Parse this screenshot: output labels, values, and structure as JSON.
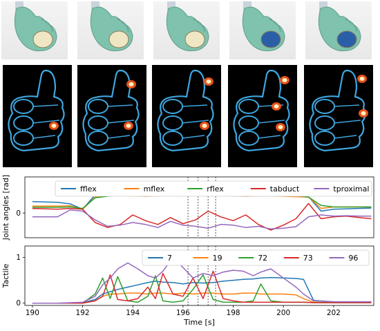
{
  "colors": {
    "blue": "#1f77b4",
    "orange": "#ff7f0e",
    "green": "#2ca02c",
    "red": "#d62728",
    "purple": "#9467bd",
    "glove": "#7fc2ae",
    "thermal_glow": "#3fa7e0",
    "thermal_hot": "#ff5a1e"
  },
  "photos": {
    "count": 5,
    "icon": "gloved-hand-holding-object"
  },
  "thermal_images": {
    "count": 5,
    "icon": "thermal-hand-render"
  },
  "chart_data": [
    {
      "type": "line",
      "ylabel": "Joint angles [rad]",
      "xlim": [
        189.7,
        203.6
      ],
      "ylim": [
        -0.65,
        0.95
      ],
      "yticks": [
        0
      ],
      "legend": "top",
      "legend_entries": [
        "fflex",
        "mflex",
        "rflex",
        "tabduct",
        "tproximal"
      ],
      "x": [
        190,
        191,
        191.5,
        192,
        192.5,
        193,
        193.5,
        194,
        194.5,
        195,
        195.5,
        196,
        196.5,
        197,
        197.5,
        198,
        198.5,
        199,
        199.5,
        200,
        200.5,
        201,
        201.5,
        202,
        202.5,
        203,
        203.5
      ],
      "series": [
        {
          "name": "fflex",
          "color": "blue",
          "values": [
            0.3,
            0.28,
            0.24,
            0.1,
            0.48,
            0.52,
            0.5,
            0.52,
            0.48,
            0.5,
            0.52,
            0.48,
            0.5,
            0.46,
            0.5,
            0.47,
            0.5,
            0.48,
            0.49,
            0.47,
            0.45,
            0.43,
            0.05,
            0.1,
            0.11,
            0.12,
            0.13
          ]
        },
        {
          "name": "mflex",
          "color": "orange",
          "values": [
            0.18,
            0.18,
            0.19,
            0.1,
            0.42,
            0.45,
            0.46,
            0.45,
            0.44,
            0.45,
            0.46,
            0.45,
            0.46,
            0.45,
            0.46,
            0.45,
            0.44,
            0.45,
            0.45,
            0.44,
            0.43,
            0.42,
            0.12,
            0.16,
            0.16,
            0.16,
            0.16
          ]
        },
        {
          "name": "rflex",
          "color": "green",
          "values": [
            0.15,
            0.15,
            0.16,
            0.12,
            0.4,
            0.44,
            0.48,
            0.46,
            0.45,
            0.48,
            0.5,
            0.47,
            0.49,
            0.47,
            0.49,
            0.48,
            0.5,
            0.47,
            0.48,
            0.46,
            0.46,
            0.42,
            0.2,
            0.16,
            0.16,
            0.16,
            0.16
          ]
        },
        {
          "name": "tabduct",
          "color": "red",
          "values": [
            0.12,
            0.1,
            0.12,
            0.1,
            -0.25,
            -0.38,
            -0.3,
            -0.05,
            -0.2,
            -0.3,
            -0.12,
            -0.28,
            -0.18,
            0.05,
            -0.1,
            -0.2,
            -0.05,
            -0.3,
            -0.45,
            -0.32,
            -0.15,
            0.25,
            -0.15,
            -0.1,
            -0.08,
            -0.12,
            -0.15
          ]
        },
        {
          "name": "tproximal",
          "color": "purple",
          "values": [
            -0.1,
            -0.1,
            0.08,
            0.05,
            -0.18,
            -0.35,
            -0.32,
            -0.25,
            -0.3,
            -0.38,
            -0.22,
            -0.32,
            -0.35,
            -0.4,
            -0.3,
            -0.32,
            -0.38,
            -0.35,
            -0.42,
            -0.4,
            -0.36,
            -0.1,
            -0.05,
            -0.08,
            -0.07,
            -0.08,
            -0.08
          ]
        }
      ]
    },
    {
      "type": "line",
      "ylabel": "Tactile",
      "xlabel": "Time [s]",
      "xlim": [
        189.7,
        203.6
      ],
      "ylim": [
        -0.05,
        1.25
      ],
      "yticks": [
        0,
        1
      ],
      "xticks": [
        190,
        192,
        194,
        196,
        198,
        200,
        202
      ],
      "legend": "top",
      "legend_entries": [
        "7",
        "19",
        "72",
        "73",
        "96"
      ],
      "x": [
        190,
        191,
        192,
        192.5,
        192.8,
        193.1,
        193.4,
        193.8,
        194.2,
        194.6,
        194.9,
        195.2,
        195.6,
        196.0,
        196.4,
        196.8,
        197.2,
        197.6,
        198.0,
        198.4,
        198.8,
        199.1,
        199.5,
        200.0,
        200.5,
        200.8,
        201.2,
        202,
        203,
        203.5
      ],
      "series": [
        {
          "name": "7",
          "color": "blue",
          "values": [
            0,
            0,
            0.01,
            0.08,
            0.2,
            0.25,
            0.3,
            0.35,
            0.4,
            0.45,
            0.48,
            0.46,
            0.45,
            0.42,
            0.45,
            0.44,
            0.45,
            0.48,
            0.5,
            0.52,
            0.53,
            0.55,
            0.56,
            0.55,
            0.54,
            0.52,
            0.06,
            0.03,
            0.03,
            0.03
          ]
        },
        {
          "name": "19",
          "color": "orange",
          "values": [
            0,
            0,
            0,
            0.05,
            0.15,
            0.2,
            0.2,
            0.22,
            0.22,
            0.2,
            0.22,
            0.22,
            0.2,
            0.22,
            0.2,
            0.22,
            0.22,
            0.2,
            0.2,
            0.22,
            0.22,
            0.2,
            0.2,
            0.2,
            0.18,
            0.1,
            0.02,
            0.01,
            0.01,
            0.01
          ]
        },
        {
          "name": "72",
          "color": "green",
          "values": [
            0,
            0,
            0,
            0.2,
            0.55,
            0.1,
            0.58,
            0.05,
            0.02,
            0.15,
            0.6,
            0.05,
            0.02,
            0.05,
            0.3,
            0.62,
            0.08,
            0.02,
            0.02,
            0.02,
            0.05,
            0.42,
            0.05,
            0.02,
            0.02,
            0.02,
            0.01,
            0.01,
            0.01,
            0.01
          ]
        },
        {
          "name": "73",
          "color": "red",
          "values": [
            0,
            0,
            0,
            0.05,
            0.15,
            0.62,
            0.08,
            0.05,
            0.1,
            0.35,
            0.1,
            0.65,
            0.2,
            0.15,
            0.55,
            0.1,
            0.7,
            0.1,
            0.05,
            0.02,
            0.02,
            0.02,
            0.02,
            0.02,
            0.02,
            0.02,
            0.01,
            0.01,
            0.01,
            0.01
          ]
        },
        {
          "name": "96",
          "color": "purple",
          "values": [
            0,
            0,
            0.02,
            0.15,
            0.4,
            0.55,
            0.75,
            0.88,
            0.75,
            0.6,
            0.55,
            0.7,
            1.0,
            0.78,
            0.55,
            0.65,
            0.6,
            0.68,
            0.72,
            0.7,
            0.6,
            0.68,
            0.75,
            0.55,
            0.35,
            0.2,
            0.05,
            0.03,
            0.03,
            0.03
          ]
        }
      ]
    }
  ],
  "markers": {
    "times": [
      196.2,
      196.6,
      197.0,
      197.3
    ],
    "style": "dotted"
  }
}
